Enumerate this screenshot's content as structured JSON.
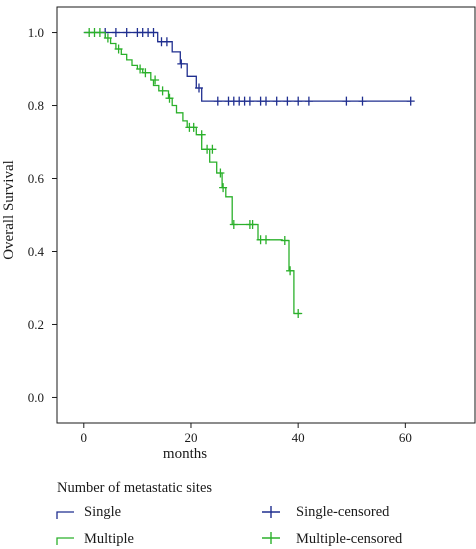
{
  "chart_data": {
    "type": "line",
    "subtype": "kaplan-meier",
    "title": "",
    "xlabel": "months",
    "ylabel": "Overall Survival",
    "xlim": [
      -5,
      73
    ],
    "ylim": [
      -0.07,
      1.07
    ],
    "xticks": [
      "0",
      "20",
      "40",
      "60"
    ],
    "yticks": [
      "0.0",
      "0.2",
      "0.4",
      "0.6",
      "0.8",
      "1.0"
    ],
    "grid": false,
    "legend": {
      "title": "Number of metastatic sites",
      "placement": "bottom"
    },
    "series": [
      {
        "name": "Single",
        "censored_name": "Single-censored",
        "color": "#1f2e8f",
        "steps": [
          [
            0,
            1.0
          ],
          [
            13.8,
            0.975
          ],
          [
            16.5,
            0.947
          ],
          [
            18,
            0.914
          ],
          [
            19.3,
            0.88
          ],
          [
            21,
            0.848
          ],
          [
            22,
            0.812
          ],
          [
            61,
            0.812
          ]
        ],
        "censored": [
          [
            4,
            1.0
          ],
          [
            6,
            1.0
          ],
          [
            8,
            1.0
          ],
          [
            10,
            1.0
          ],
          [
            11,
            1.0
          ],
          [
            12,
            1.0
          ],
          [
            13,
            1.0
          ],
          [
            14.5,
            0.975
          ],
          [
            15.5,
            0.975
          ],
          [
            18.2,
            0.914
          ],
          [
            21.5,
            0.848
          ],
          [
            25,
            0.812
          ],
          [
            27,
            0.812
          ],
          [
            28,
            0.812
          ],
          [
            29,
            0.812
          ],
          [
            30,
            0.812
          ],
          [
            31,
            0.812
          ],
          [
            33,
            0.812
          ],
          [
            34,
            0.812
          ],
          [
            36,
            0.812
          ],
          [
            38,
            0.812
          ],
          [
            40,
            0.812
          ],
          [
            42,
            0.812
          ],
          [
            49,
            0.812
          ],
          [
            52,
            0.812
          ],
          [
            61,
            0.812
          ]
        ]
      },
      {
        "name": "Multiple",
        "censored_name": "Multiple-censored",
        "color": "#2bb02b",
        "steps": [
          [
            0,
            1.0
          ],
          [
            4,
            0.985
          ],
          [
            5,
            0.97
          ],
          [
            6,
            0.955
          ],
          [
            7,
            0.94
          ],
          [
            8,
            0.925
          ],
          [
            9,
            0.91
          ],
          [
            10,
            0.9
          ],
          [
            11,
            0.89
          ],
          [
            12.5,
            0.87
          ],
          [
            13,
            0.855
          ],
          [
            14,
            0.84
          ],
          [
            15.8,
            0.82
          ],
          [
            16.5,
            0.8
          ],
          [
            17.3,
            0.78
          ],
          [
            18.5,
            0.758
          ],
          [
            19.3,
            0.74
          ],
          [
            21,
            0.72
          ],
          [
            22,
            0.68
          ],
          [
            23.5,
            0.645
          ],
          [
            24.8,
            0.615
          ],
          [
            25.8,
            0.575
          ],
          [
            26.5,
            0.55
          ],
          [
            27.7,
            0.474
          ],
          [
            32.5,
            0.432
          ],
          [
            37,
            0.43
          ],
          [
            38.3,
            0.347
          ],
          [
            39.2,
            0.23
          ],
          [
            40.5,
            0.23
          ]
        ],
        "censored": [
          [
            1,
            1.0
          ],
          [
            2,
            1.0
          ],
          [
            3,
            1.0
          ],
          [
            4.5,
            0.985
          ],
          [
            6.5,
            0.955
          ],
          [
            10.5,
            0.9
          ],
          [
            11.5,
            0.89
          ],
          [
            13.3,
            0.87
          ],
          [
            14.7,
            0.84
          ],
          [
            16,
            0.82
          ],
          [
            19.7,
            0.74
          ],
          [
            20.5,
            0.74
          ],
          [
            22,
            0.72
          ],
          [
            23,
            0.68
          ],
          [
            24,
            0.68
          ],
          [
            25.5,
            0.615
          ],
          [
            26,
            0.575
          ],
          [
            28,
            0.474
          ],
          [
            31,
            0.474
          ],
          [
            31.5,
            0.474
          ],
          [
            33,
            0.432
          ],
          [
            34,
            0.432
          ],
          [
            37.5,
            0.43
          ],
          [
            38.5,
            0.347
          ],
          [
            40,
            0.23
          ]
        ]
      }
    ]
  }
}
